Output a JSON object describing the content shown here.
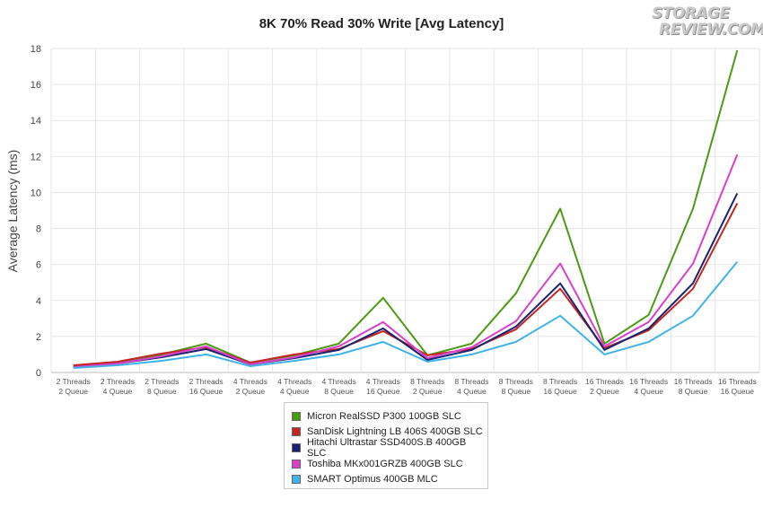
{
  "logo": {
    "line1": "STORAGE",
    "line2": "REVIEW.COM"
  },
  "chart_data": {
    "type": "line",
    "title": "8K 70% Read 30% Write [Avg Latency]",
    "xlabel": "",
    "ylabel": "Average Latency (ms)",
    "ylim": [
      0,
      18
    ],
    "yticks": [
      0,
      2,
      4,
      6,
      8,
      10,
      12,
      14,
      16,
      18
    ],
    "grid": true,
    "legend_position": "bottom",
    "categories": [
      [
        "2 Threads",
        "2 Queue"
      ],
      [
        "2 Threads",
        "4 Queue"
      ],
      [
        "2 Threads",
        "8 Queue"
      ],
      [
        "2 Threads",
        "16 Queue"
      ],
      [
        "4 Threads",
        "2 Queue"
      ],
      [
        "4 Threads",
        "4 Queue"
      ],
      [
        "4 Threads",
        "8 Queue"
      ],
      [
        "4 Threads",
        "16 Queue"
      ],
      [
        "8 Threads",
        "2 Queue"
      ],
      [
        "8 Threads",
        "4 Queue"
      ],
      [
        "8 Threads",
        "8 Queue"
      ],
      [
        "8 Threads",
        "16 Queue"
      ],
      [
        "16 Threads",
        "2 Queue"
      ],
      [
        "16 Threads",
        "4 Queue"
      ],
      [
        "16 Threads",
        "8 Queue"
      ],
      [
        "16 Threads",
        "16 Queue"
      ]
    ],
    "series": [
      {
        "name": "Micron RealSSD P300 100GB SLC",
        "color": "#4a9a12",
        "values": [
          0.35,
          0.55,
          1.0,
          1.6,
          0.55,
          0.95,
          1.6,
          4.15,
          0.95,
          1.6,
          4.4,
          9.1,
          1.6,
          3.2,
          9.1,
          17.9
        ]
      },
      {
        "name": "SanDisk Lightning LB 406S 400GB SLC",
        "color": "#c4261f",
        "values": [
          0.4,
          0.6,
          1.05,
          1.4,
          0.55,
          1.0,
          1.3,
          2.3,
          0.95,
          1.3,
          2.4,
          4.65,
          1.35,
          2.35,
          4.65,
          9.4
        ]
      },
      {
        "name": "Hitachi Ultrastar SSD400S.B 400GB SLC",
        "color": "#1a2270",
        "values": [
          0.3,
          0.5,
          0.85,
          1.3,
          0.45,
          0.8,
          1.25,
          2.45,
          0.7,
          1.25,
          2.55,
          4.95,
          1.25,
          2.45,
          4.95,
          9.95
        ]
      },
      {
        "name": "Toshiba MKx001GRZB 400GB SLC",
        "color": "#d93fc9",
        "values": [
          0.3,
          0.5,
          0.9,
          1.45,
          0.45,
          0.85,
          1.45,
          2.8,
          0.8,
          1.4,
          2.85,
          6.05,
          1.45,
          2.8,
          6.05,
          12.1
        ]
      },
      {
        "name": "SMART Optimus 400GB MLC",
        "color": "#3fb2e8",
        "values": [
          0.25,
          0.4,
          0.65,
          1.0,
          0.35,
          0.65,
          1.0,
          1.7,
          0.6,
          1.0,
          1.7,
          3.15,
          1.0,
          1.7,
          3.15,
          6.15
        ]
      }
    ]
  }
}
